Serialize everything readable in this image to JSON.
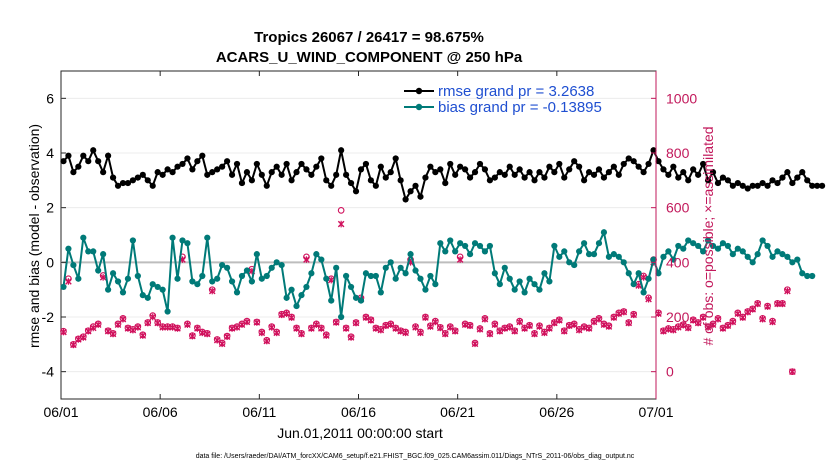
{
  "chart_data": {
    "type": "line",
    "title": "Tropics 26067 / 26417 = 98.675%",
    "subtitle": "ACARS_U_WIND_COMPONENT @ 250 hPa",
    "xlabel": "Jun.01,2011 00:00:00 start",
    "ylabel": "rmse and bias (model - observation)",
    "y2label": "# of obs: o=possible; ×=assimilated",
    "x_tick_labels": [
      "06/01",
      "06/06",
      "06/11",
      "06/16",
      "06/21",
      "06/26",
      "07/01"
    ],
    "x_tick_days": [
      0,
      5,
      10,
      15,
      20,
      25,
      30
    ],
    "xlim": [
      0,
      30
    ],
    "ylim": [
      -5,
      7
    ],
    "y_ticks": [
      -4,
      -2,
      0,
      2,
      4,
      6
    ],
    "y2lim": [
      -100,
      1100
    ],
    "y2_ticks": [
      0,
      200,
      400,
      600,
      800,
      1000
    ],
    "step_days": 0.25,
    "zero_line": 0,
    "series": [
      {
        "name": "rmse grand pr = 3.2638",
        "axis": "left",
        "color": "#000000",
        "values": [
          3.7,
          3.9,
          3.3,
          3.5,
          3.9,
          3.7,
          4.1,
          3.7,
          3.3,
          3.9,
          3.1,
          2.8,
          2.9,
          2.9,
          3.0,
          3.1,
          3.2,
          3.0,
          2.8,
          3.3,
          3.2,
          3.4,
          3.3,
          3.5,
          3.6,
          3.8,
          3.4,
          3.7,
          3.9,
          3.2,
          3.3,
          3.4,
          3.5,
          3.7,
          3.2,
          3.6,
          2.9,
          3.3,
          3.0,
          3.6,
          3.2,
          2.8,
          3.3,
          3.5,
          3.2,
          3.6,
          3.0,
          3.3,
          3.6,
          3.4,
          3.2,
          3.5,
          3.8,
          3.0,
          2.8,
          3.2,
          4.1,
          3.2,
          2.9,
          2.6,
          3.4,
          3.6,
          3.0,
          2.8,
          3.5,
          3.1,
          3.3,
          3.8,
          3.0,
          2.3,
          2.6,
          2.8,
          2.4,
          3.1,
          3.5,
          3.3,
          3.4,
          2.9,
          3.6,
          3.2,
          3.5,
          3.4,
          3.1,
          3.3,
          3.6,
          3.4,
          3.0,
          3.1,
          3.3,
          3.2,
          3.5,
          3.2,
          3.4,
          3.1,
          3.3,
          3.0,
          3.3,
          3.1,
          3.5,
          3.3,
          3.6,
          3.1,
          3.4,
          3.7,
          3.5,
          3.0,
          3.3,
          3.2,
          3.4,
          3.1,
          3.3,
          3.5,
          3.2,
          3.6,
          3.8,
          3.7,
          3.5,
          3.3,
          3.6,
          4.1,
          3.7,
          3.4,
          3.2,
          3.5,
          3.1,
          3.3,
          3.0,
          3.4,
          3.2,
          3.6,
          3.0,
          3.3,
          2.9,
          3.1,
          3.0,
          2.8,
          2.9,
          2.8,
          2.7,
          2.8,
          2.8,
          2.9,
          2.8,
          3.0,
          2.9,
          3.1,
          3.3,
          2.9,
          3.1,
          3.3,
          3.0,
          2.8,
          2.8,
          2.8
        ]
      },
      {
        "name": "bias grand pr = -0.13895",
        "axis": "left",
        "color": "#007a78",
        "values": [
          -0.9,
          0.5,
          -0.1,
          -0.6,
          0.9,
          0.4,
          0.4,
          -0.3,
          0.3,
          -1.0,
          -0.4,
          -0.7,
          -1.1,
          -0.6,
          0.8,
          -0.5,
          -1.2,
          -1.3,
          -0.8,
          -0.9,
          -1.0,
          -1.8,
          0.9,
          -0.6,
          0.8,
          0.7,
          -0.7,
          -0.8,
          -0.5,
          0.9,
          -0.7,
          -0.6,
          -0.1,
          -0.2,
          -0.7,
          -1.1,
          -0.5,
          -0.3,
          -0.7,
          0.3,
          -0.6,
          -0.5,
          -0.2,
          0.0,
          -0.1,
          -1.3,
          -1.0,
          -1.6,
          -1.2,
          -0.9,
          -0.4,
          0.3,
          0.1,
          -0.6,
          -1.4,
          -0.2,
          -2.0,
          -0.5,
          -0.9,
          -1.3,
          -1.4,
          -0.4,
          -0.5,
          -0.5,
          -1.1,
          -0.2,
          0.0,
          -0.6,
          -0.2,
          -0.4,
          0.3,
          -0.3,
          -0.6,
          -1.0,
          -0.5,
          -0.8,
          0.7,
          0.4,
          0.8,
          0.4,
          0.7,
          0.6,
          0.3,
          0.7,
          0.6,
          0.4,
          0.6,
          -0.4,
          -0.8,
          -0.2,
          -0.6,
          -1.0,
          -0.7,
          -1.1,
          -0.6,
          -0.8,
          -1.0,
          -0.4,
          -0.7,
          0.6,
          0.2,
          0.4,
          0.0,
          -0.1,
          0.4,
          0.7,
          0.3,
          0.3,
          0.7,
          1.1,
          0.2,
          0.3,
          0.2,
          0.0,
          -0.4,
          -0.8,
          -0.4,
          -1.1,
          -0.6,
          0.1,
          -0.4,
          0.2,
          0.4,
          0.1,
          0.6,
          0.5,
          0.8,
          0.7,
          0.6,
          0.4,
          0.8,
          0.6,
          0.5,
          0.7,
          0.6,
          0.3,
          0.5,
          0.4,
          0.2,
          0.0,
          0.3,
          0.8,
          0.6,
          0.2,
          0.4,
          0.3,
          0.2,
          0.0,
          0.1,
          -0.4,
          -0.5,
          -0.5
        ]
      },
      {
        "name": "possible observations",
        "axis": "right",
        "color": "#d0105c",
        "marker": "circle",
        "values": [
          148,
          340,
          100,
          120,
          128,
          150,
          165,
          175,
          352,
          150,
          140,
          175,
          195,
          160,
          155,
          165,
          135,
          180,
          205,
          180,
          165,
          165,
          165,
          160,
          420,
          175,
          132,
          160,
          145,
          140,
          300,
          118,
          105,
          130,
          160,
          165,
          175,
          185,
          375,
          182,
          145,
          115,
          165,
          145,
          210,
          215,
          200,
          160,
          140,
          420,
          160,
          175,
          160,
          135,
          340,
          182,
          590,
          160,
          128,
          180,
          270,
          200,
          190,
          160,
          155,
          170,
          175,
          160,
          150,
          145,
          410,
          165,
          145,
          200,
          168,
          185,
          162,
          140,
          165,
          150,
          420,
          175,
          170,
          105,
          158,
          195,
          140,
          175,
          150,
          160,
          165,
          150,
          185,
          160,
          170,
          140,
          168,
          145,
          160,
          180,
          190,
          150,
          170,
          175,
          155,
          165,
          160,
          185,
          195,
          175,
          168,
          200,
          215,
          220,
          180,
          210,
          320,
          350,
          270,
          410,
          215,
          150,
          158,
          155,
          165,
          172,
          162,
          190,
          180,
          200,
          165,
          175,
          195,
          160,
          170,
          185,
          215,
          200,
          220,
          230,
          250,
          195,
          240,
          185,
          250,
          250,
          300,
          0
        ]
      },
      {
        "name": "assimilated observations",
        "axis": "right",
        "color": "#d0105c",
        "marker": "x",
        "values": [
          145,
          330,
          98,
          118,
          125,
          148,
          160,
          172,
          345,
          148,
          138,
          172,
          192,
          158,
          152,
          162,
          132,
          178,
          200,
          178,
          162,
          162,
          162,
          158,
          410,
          172,
          130,
          158,
          142,
          138,
          295,
          115,
          102,
          128,
          158,
          162,
          172,
          182,
          368,
          180,
          142,
          112,
          162,
          142,
          208,
          212,
          198,
          158,
          138,
          410,
          158,
          172,
          158,
          132,
          335,
          180,
          540,
          158,
          125,
          178,
          265,
          198,
          188,
          158,
          152,
          168,
          172,
          158,
          148,
          142,
          400,
          162,
          142,
          198,
          165,
          182,
          160,
          138,
          162,
          148,
          410,
          172,
          168,
          102,
          155,
          192,
          138,
          172,
          148,
          158,
          162,
          148,
          182,
          158,
          168,
          138,
          165,
          142,
          158,
          178,
          188,
          148,
          168,
          172,
          152,
          162,
          158,
          182,
          192,
          172,
          165,
          198,
          212,
          218,
          178,
          208,
          315,
          345,
          265,
          400,
          212,
          148,
          155,
          152,
          162,
          170,
          160,
          188,
          178,
          198,
          162,
          172,
          192,
          158,
          168,
          182,
          212,
          198,
          218,
          228,
          248,
          192,
          238,
          182,
          248,
          248,
          295,
          0
        ]
      }
    ],
    "legend_position": "top-right"
  },
  "footer": "data file: /Users/raeder/DAI/ATM_forcXX/CAM6_setup/f.e21.FHIST_BGC.f09_025.CAM6assim.011/Diags_NTrS_2011-06/obs_diag_output.nc"
}
